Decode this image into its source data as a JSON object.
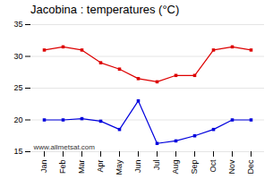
{
  "chart_data": {
    "type": "line",
    "title": "Jacobina : temperatures (°C)",
    "categories": [
      "Jan",
      "Feb",
      "Mar",
      "Apr",
      "May",
      "Jun",
      "Jul",
      "Aug",
      "Sep",
      "Oct",
      "Nov",
      "Dec"
    ],
    "series": [
      {
        "color": "#dd0000",
        "marker": "square",
        "values": [
          31.0,
          31.5,
          31.0,
          29.0,
          28.0,
          26.5,
          26.0,
          27.0,
          27.0,
          31.0,
          31.5,
          31.0
        ]
      },
      {
        "color": "#0000dd",
        "marker": "square",
        "values": [
          20.0,
          20.0,
          20.2,
          19.8,
          18.5,
          23.0,
          16.3,
          16.7,
          17.5,
          18.5,
          20.0,
          20.0
        ]
      }
    ],
    "ylim": [
      15,
      35
    ],
    "yticks": [
      15,
      20,
      25,
      30,
      35
    ],
    "grid": true,
    "annotations": [
      "www.allmetsat.com"
    ]
  }
}
